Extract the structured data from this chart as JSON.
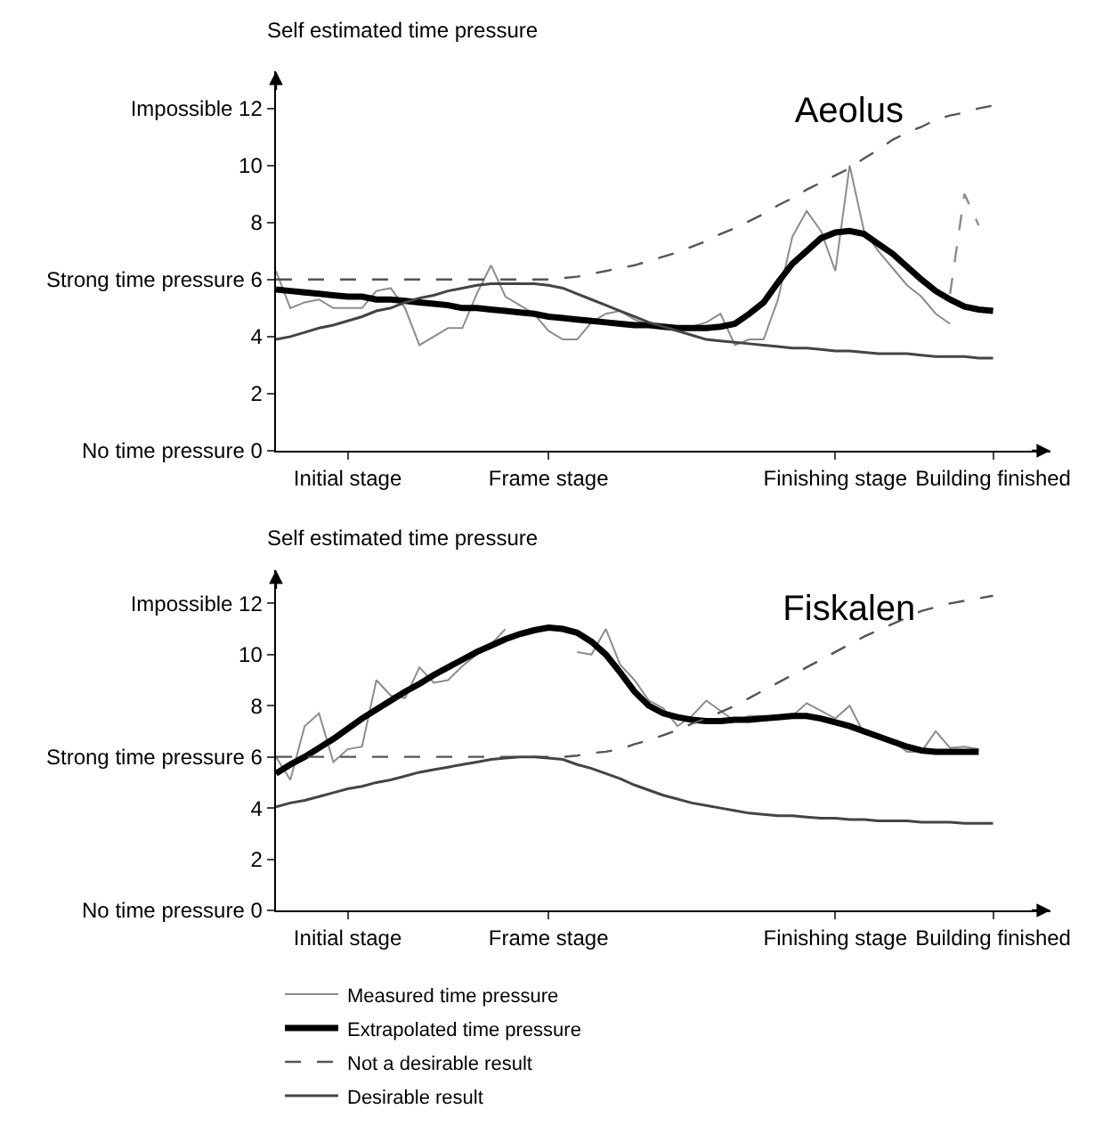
{
  "chart_data": [
    {
      "type": "line",
      "title": "Aeolus",
      "ylabel": "Self estimated time pressure",
      "legend": false,
      "grid": false,
      "marker": "none",
      "categories": [
        null,
        null,
        null,
        null,
        null,
        "Initial stage",
        null,
        null,
        null,
        null,
        null,
        null,
        null,
        null,
        null,
        null,
        null,
        null,
        null,
        "Frame stage",
        null,
        null,
        null,
        null,
        null,
        null,
        null,
        null,
        null,
        null,
        null,
        null,
        null,
        null,
        null,
        null,
        null,
        null,
        null,
        "Finishing stage",
        null,
        null,
        null,
        null,
        null,
        null,
        null,
        null,
        null,
        null,
        "Building finished",
        null,
        null,
        null,
        null
      ],
      "ylim": [
        0,
        13.3
      ],
      "yticks": [
        {
          "value": 0,
          "label": "No time pressure 0"
        },
        2,
        4,
        {
          "value": 6,
          "label": "Strong time pressure 6"
        },
        8,
        10,
        {
          "value": 12,
          "label": "Impossible 12"
        }
      ],
      "series": [
        {
          "color": "#8c8c8c",
          "line_style": "solid",
          "values": [
            6.3,
            5.0,
            5.2,
            5.3,
            5.0,
            5.0,
            5.0,
            5.6,
            5.7,
            5.0,
            3.7,
            4.0,
            4.3,
            4.3,
            5.5,
            6.5,
            5.4,
            5.1,
            4.8,
            4.2,
            3.9,
            3.9,
            4.5,
            4.8,
            4.9,
            4.6,
            4.4,
            4.35,
            4.35,
            4.35,
            4.5,
            4.8,
            3.7,
            3.9,
            3.9,
            5.3,
            7.5,
            8.4,
            7.7,
            6.3,
            10.0,
            7.7,
            7.0,
            6.4,
            5.8,
            5.4,
            4.8,
            4.45,
            null,
            null,
            null,
            null,
            null,
            null,
            null
          ]
        },
        {
          "color": "#000000",
          "line_style": "solid",
          "values": [
            5.65,
            5.6,
            5.55,
            5.5,
            5.45,
            5.4,
            5.4,
            5.3,
            5.3,
            5.25,
            5.2,
            5.15,
            5.1,
            5.0,
            5.0,
            4.95,
            4.9,
            4.85,
            4.8,
            4.7,
            4.65,
            4.6,
            4.55,
            4.5,
            4.45,
            4.4,
            4.4,
            4.35,
            4.3,
            4.3,
            4.3,
            4.35,
            4.45,
            4.8,
            5.2,
            5.9,
            6.55,
            7.0,
            7.45,
            7.65,
            7.7,
            7.6,
            7.25,
            6.9,
            6.45,
            6.0,
            5.6,
            5.3,
            5.05,
            4.95,
            4.9,
            null,
            null,
            null,
            null
          ]
        },
        {
          "color": "#555555",
          "line_style": "dashed",
          "values": [
            6,
            6,
            6,
            6,
            6,
            6,
            6,
            6,
            6,
            6,
            6,
            6,
            6,
            6,
            6,
            6,
            6,
            6,
            6,
            6,
            6.05,
            6.1,
            6.2,
            6.3,
            6.4,
            6.5,
            6.65,
            6.8,
            6.95,
            7.15,
            7.35,
            7.6,
            7.8,
            8.05,
            8.3,
            8.6,
            8.85,
            9.15,
            9.4,
            9.65,
            9.9,
            10.25,
            10.55,
            10.9,
            11.15,
            11.35,
            11.6,
            11.75,
            11.85,
            12.0,
            12.1,
            null,
            null,
            null,
            null
          ]
        },
        {
          "color": "#444444",
          "line_style": "solid",
          "values": [
            3.9,
            4.0,
            4.15,
            4.3,
            4.4,
            4.55,
            4.7,
            4.9,
            5.0,
            5.2,
            5.35,
            5.45,
            5.6,
            5.7,
            5.8,
            5.85,
            5.85,
            5.85,
            5.85,
            5.8,
            5.7,
            5.5,
            5.3,
            5.1,
            4.9,
            4.7,
            4.5,
            4.35,
            4.2,
            4.05,
            3.9,
            3.85,
            3.8,
            3.75,
            3.7,
            3.65,
            3.6,
            3.6,
            3.55,
            3.5,
            3.5,
            3.45,
            3.4,
            3.4,
            3.4,
            3.35,
            3.3,
            3.3,
            3.3,
            3.25,
            3.25,
            null,
            null,
            null,
            null
          ]
        },
        {
          "color": "#8c8c8c",
          "line_style": "dashed",
          "values": [
            null,
            null,
            null,
            null,
            null,
            null,
            null,
            null,
            null,
            null,
            null,
            null,
            null,
            null,
            null,
            null,
            null,
            null,
            null,
            null,
            null,
            null,
            null,
            null,
            null,
            null,
            null,
            null,
            null,
            null,
            null,
            null,
            null,
            null,
            null,
            null,
            null,
            null,
            null,
            null,
            null,
            null,
            null,
            null,
            null,
            null,
            null,
            5.5,
            9.0,
            7.9,
            null,
            null,
            null,
            null,
            null
          ]
        }
      ]
    },
    {
      "type": "line",
      "title": "Fiskalen",
      "ylabel": "Self estimated time pressure",
      "legend": "bottom",
      "grid": false,
      "marker": "none",
      "categories": [
        null,
        null,
        null,
        null,
        null,
        "Initial stage",
        null,
        null,
        null,
        null,
        null,
        null,
        null,
        null,
        null,
        null,
        null,
        null,
        null,
        "Frame stage",
        null,
        null,
        null,
        null,
        null,
        null,
        null,
        null,
        null,
        null,
        null,
        null,
        null,
        null,
        null,
        null,
        null,
        null,
        null,
        "Finishing stage",
        null,
        null,
        null,
        null,
        null,
        null,
        null,
        null,
        null,
        null,
        "Building finished",
        null,
        null,
        null,
        null
      ],
      "ylim": [
        0,
        13.3
      ],
      "yticks": [
        {
          "value": 0,
          "label": "No time pressure 0"
        },
        2,
        4,
        {
          "value": 6,
          "label": "Strong time pressure 6"
        },
        8,
        10,
        {
          "value": 12,
          "label": "Impossible 12"
        }
      ],
      "series": [
        {
          "name": "Measured time pressure",
          "color": "#8c8c8c",
          "line_style": "solid",
          "values": [
            6.0,
            5.1,
            7.2,
            7.7,
            5.8,
            6.3,
            6.4,
            9.0,
            8.4,
            8.3,
            9.5,
            8.9,
            9.0,
            9.55,
            10.0,
            10.4,
            11.0,
            null,
            null,
            null,
            null,
            10.1,
            10.0,
            11.0,
            9.6,
            9.0,
            8.2,
            7.9,
            7.2,
            7.6,
            8.2,
            7.8,
            7.4,
            7.6,
            7.6,
            7.5,
            7.6,
            8.1,
            7.8,
            7.5,
            8.0,
            6.9,
            6.8,
            6.6,
            6.2,
            6.2,
            7.0,
            6.35,
            6.4,
            6.3,
            null,
            null,
            null,
            null,
            null
          ]
        },
        {
          "name": "Extrapolated time pressure",
          "color": "#000000",
          "line_style": "solid",
          "values": [
            5.35,
            5.7,
            6.0,
            6.35,
            6.7,
            7.1,
            7.5,
            7.85,
            8.2,
            8.55,
            8.85,
            9.2,
            9.5,
            9.8,
            10.1,
            10.35,
            10.6,
            10.8,
            10.95,
            11.05,
            11.0,
            10.85,
            10.5,
            10.0,
            9.3,
            8.55,
            8.0,
            7.7,
            7.55,
            7.45,
            7.4,
            7.4,
            7.45,
            7.45,
            7.5,
            7.55,
            7.6,
            7.6,
            7.5,
            7.35,
            7.2,
            7.0,
            6.8,
            6.6,
            6.4,
            6.25,
            6.2,
            6.2,
            6.2,
            6.2,
            null,
            null,
            null,
            null,
            null
          ]
        },
        {
          "name": "Not a desirable result",
          "color": "#555555",
          "line_style": "dashed",
          "values": [
            6,
            6,
            6,
            6,
            6,
            6,
            6,
            6,
            6,
            6,
            6,
            6,
            6,
            6,
            6,
            6,
            6,
            6,
            6,
            6,
            6,
            6.05,
            6.15,
            6.2,
            6.3,
            6.5,
            6.65,
            6.85,
            7.05,
            7.3,
            7.5,
            7.75,
            8.0,
            8.3,
            8.6,
            8.9,
            9.2,
            9.5,
            9.8,
            10.1,
            10.4,
            10.7,
            10.95,
            11.2,
            11.45,
            11.7,
            11.85,
            12.0,
            12.1,
            12.2,
            12.3,
            null,
            null,
            null,
            null
          ]
        },
        {
          "name": "Desirable result",
          "color": "#444444",
          "line_style": "solid",
          "values": [
            4.05,
            4.2,
            4.3,
            4.45,
            4.6,
            4.75,
            4.85,
            5.0,
            5.1,
            5.25,
            5.4,
            5.5,
            5.6,
            5.7,
            5.8,
            5.9,
            5.95,
            6.0,
            6.0,
            5.95,
            5.9,
            5.7,
            5.55,
            5.35,
            5.15,
            4.9,
            4.7,
            4.5,
            4.35,
            4.2,
            4.1,
            4.0,
            3.9,
            3.8,
            3.75,
            3.7,
            3.7,
            3.65,
            3.6,
            3.6,
            3.55,
            3.55,
            3.5,
            3.5,
            3.5,
            3.45,
            3.45,
            3.45,
            3.4,
            3.4,
            3.4,
            null,
            null,
            null,
            null
          ]
        }
      ]
    }
  ]
}
